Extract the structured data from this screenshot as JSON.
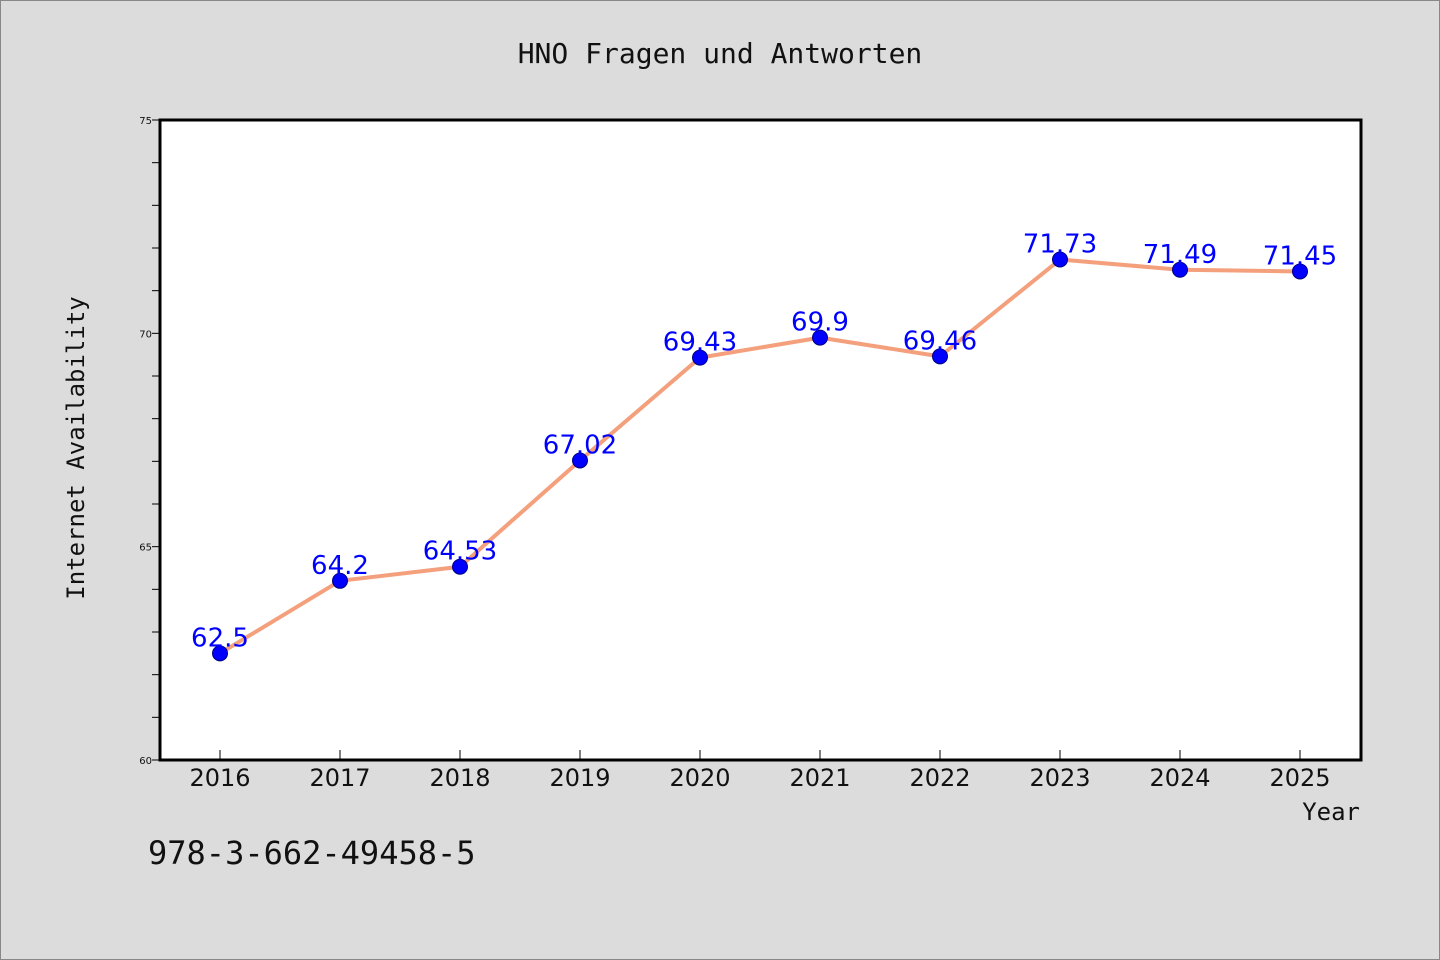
{
  "chart_data": {
    "type": "line",
    "title": "HNO Fragen und Antworten",
    "xlabel": "Year",
    "ylabel": "Internet Availability",
    "categories": [
      "2016",
      "2017",
      "2018",
      "2019",
      "2020",
      "2021",
      "2022",
      "2023",
      "2024",
      "2025"
    ],
    "series": [
      {
        "values": [
          62.5,
          64.2,
          64.53,
          67.02,
          69.43,
          69.9,
          69.46,
          71.73,
          71.49,
          71.45
        ],
        "labels": [
          "62.5",
          "64.2",
          "64.53",
          "67.02",
          "69.43",
          "69.9",
          "69.46",
          "71.73",
          "71.49",
          "71.45"
        ],
        "line_color": "#f4a07c",
        "marker_color": "#0000ff",
        "label_color": "#0000ff"
      }
    ],
    "ylim": [
      60,
      75
    ],
    "yticks": [
      60,
      65,
      70,
      75
    ],
    "grid": false
  },
  "footer": {
    "text": "978-3-662-49458-5"
  },
  "colors": {
    "background": "#dcdcdc",
    "plot_background": "#ffffff"
  }
}
